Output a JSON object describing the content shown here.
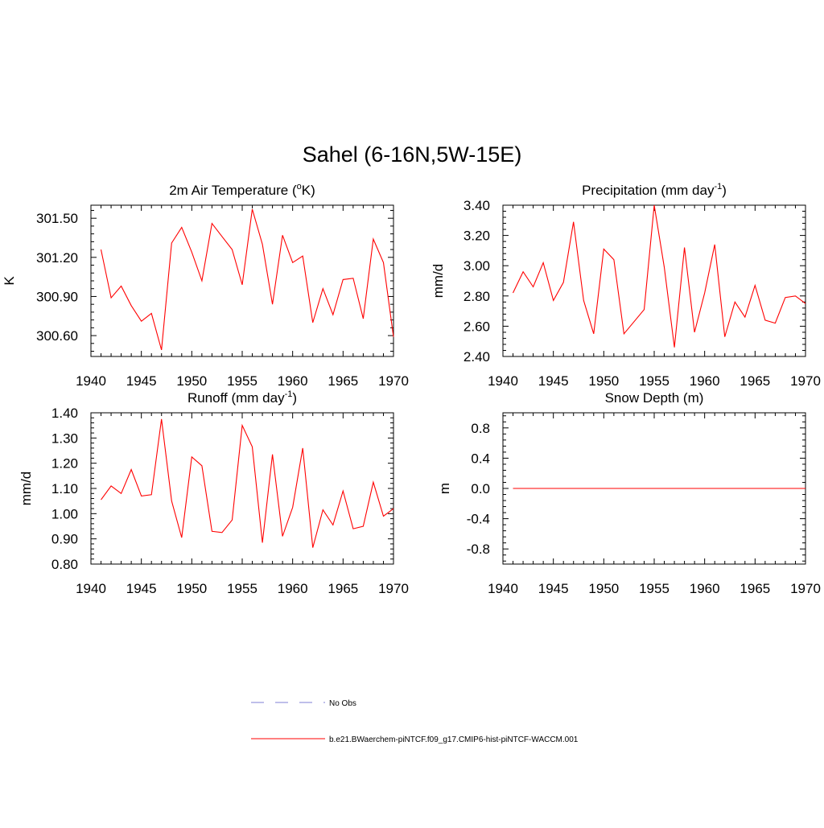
{
  "title": "Sahel (6-16N,5W-15E)",
  "colors": {
    "model": "#ff0000",
    "obs": "#9999dd",
    "axis": "#000000"
  },
  "legend": {
    "obs_label": "No Obs",
    "model_label": "b.e21.BWaerchem-piNTCF.f09_g17.CMIP6-hist-piNTCF-WACCM.001"
  },
  "chart_data": [
    {
      "type": "line",
      "title_main": "2m Air Temperature (",
      "title_sup_pre": "o",
      "title_rest": "K)",
      "title_sup": "",
      "title_tail": "",
      "ylabel": "K",
      "xlim": [
        1940,
        1970
      ],
      "ylim": [
        300.44,
        301.6
      ],
      "xticks": [
        1940,
        1945,
        1950,
        1955,
        1960,
        1965,
        1970
      ],
      "xtick_labels": [
        "1940",
        "1945",
        "1950",
        "1955",
        "1960",
        "1965",
        "1970"
      ],
      "yticks": [
        300.6,
        300.9,
        301.2,
        301.5
      ],
      "ytick_labels": [
        "300.60",
        "300.90",
        "301.20",
        "301.50"
      ],
      "x": [
        1941,
        1942,
        1943,
        1944,
        1945,
        1946,
        1947,
        1948,
        1949,
        1950,
        1951,
        1952,
        1953,
        1954,
        1955,
        1956,
        1957,
        1958,
        1959,
        1960,
        1961,
        1962,
        1963,
        1964,
        1965,
        1966,
        1967,
        1968,
        1969,
        1970
      ],
      "series": [
        {
          "values": [
            301.26,
            300.89,
            300.98,
            300.83,
            300.71,
            300.77,
            300.49,
            301.31,
            301.43,
            301.24,
            301.02,
            301.46,
            301.36,
            301.26,
            300.99,
            301.57,
            301.3,
            300.84,
            301.37,
            301.16,
            301.21,
            300.7,
            300.96,
            300.76,
            301.03,
            301.04,
            300.73,
            301.34,
            301.16,
            300.59
          ]
        }
      ]
    },
    {
      "type": "line",
      "title_main": "Precipitation (mm day",
      "title_sup_pre": "",
      "title_rest": "",
      "title_sup": "-1",
      "title_tail": ")",
      "ylabel": "mm/d",
      "xlim": [
        1940,
        1970
      ],
      "ylim": [
        2.4,
        3.4
      ],
      "xticks": [
        1940,
        1945,
        1950,
        1955,
        1960,
        1965,
        1970
      ],
      "xtick_labels": [
        "1940",
        "1945",
        "1950",
        "1955",
        "1960",
        "1965",
        "1970"
      ],
      "yticks": [
        2.4,
        2.6,
        2.8,
        3.0,
        3.2,
        3.4
      ],
      "ytick_labels": [
        "2.40",
        "2.60",
        "2.80",
        "3.00",
        "3.20",
        "3.40"
      ],
      "x": [
        1941,
        1942,
        1943,
        1944,
        1945,
        1946,
        1947,
        1948,
        1949,
        1950,
        1951,
        1952,
        1953,
        1954,
        1955,
        1956,
        1957,
        1958,
        1959,
        1960,
        1961,
        1962,
        1963,
        1964,
        1965,
        1966,
        1967,
        1968,
        1969,
        1970
      ],
      "series": [
        {
          "values": [
            2.82,
            2.96,
            2.86,
            3.02,
            2.77,
            2.89,
            3.29,
            2.77,
            2.55,
            3.11,
            3.04,
            2.55,
            2.63,
            2.71,
            3.4,
            2.99,
            2.46,
            3.12,
            2.56,
            2.82,
            3.14,
            2.53,
            2.76,
            2.66,
            2.87,
            2.64,
            2.62,
            2.79,
            2.8,
            2.75
          ]
        }
      ]
    },
    {
      "type": "line",
      "title_main": "Runoff (mm day",
      "title_sup_pre": "",
      "title_rest": "",
      "title_sup": "-1",
      "title_tail": ")",
      "ylabel": "mm/d",
      "xlim": [
        1940,
        1970
      ],
      "ylim": [
        0.8,
        1.4
      ],
      "xticks": [
        1940,
        1945,
        1950,
        1955,
        1960,
        1965,
        1970
      ],
      "xtick_labels": [
        "1940",
        "1945",
        "1950",
        "1955",
        "1960",
        "1965",
        "1970"
      ],
      "yticks": [
        0.8,
        0.9,
        1.0,
        1.1,
        1.2,
        1.3,
        1.4
      ],
      "ytick_labels": [
        "0.80",
        "0.90",
        "1.00",
        "1.10",
        "1.20",
        "1.30",
        "1.40"
      ],
      "x": [
        1941,
        1942,
        1943,
        1944,
        1945,
        1946,
        1947,
        1948,
        1949,
        1950,
        1951,
        1952,
        1953,
        1954,
        1955,
        1956,
        1957,
        1958,
        1959,
        1960,
        1961,
        1962,
        1963,
        1964,
        1965,
        1966,
        1967,
        1968,
        1969,
        1970
      ],
      "series": [
        {
          "values": [
            1.055,
            1.11,
            1.08,
            1.175,
            1.07,
            1.075,
            1.375,
            1.05,
            0.905,
            1.225,
            1.19,
            0.93,
            0.925,
            0.975,
            1.35,
            1.265,
            0.885,
            1.235,
            0.91,
            1.025,
            1.26,
            0.865,
            1.015,
            0.955,
            1.09,
            0.94,
            0.95,
            1.125,
            0.99,
            1.02
          ]
        }
      ]
    },
    {
      "type": "line",
      "title_main": "Snow Depth (m)",
      "title_sup_pre": "",
      "title_rest": "",
      "title_sup": "",
      "title_tail": "",
      "ylabel": "m",
      "xlim": [
        1940,
        1970
      ],
      "ylim": [
        -1.0,
        1.0
      ],
      "xticks": [
        1940,
        1945,
        1950,
        1955,
        1960,
        1965,
        1970
      ],
      "xtick_labels": [
        "1940",
        "1945",
        "1950",
        "1955",
        "1960",
        "1965",
        "1970"
      ],
      "yticks": [
        -0.8,
        -0.4,
        0.0,
        0.4,
        0.8
      ],
      "ytick_labels": [
        "-0.8",
        "-0.4",
        "0.0",
        "0.4",
        "0.8"
      ],
      "x": [
        1941,
        1942,
        1943,
        1944,
        1945,
        1946,
        1947,
        1948,
        1949,
        1950,
        1951,
        1952,
        1953,
        1954,
        1955,
        1956,
        1957,
        1958,
        1959,
        1960,
        1961,
        1962,
        1963,
        1964,
        1965,
        1966,
        1967,
        1968,
        1969,
        1970
      ],
      "series": [
        {
          "values": [
            0,
            0,
            0,
            0,
            0,
            0,
            0,
            0,
            0,
            0,
            0,
            0,
            0,
            0,
            0,
            0,
            0,
            0,
            0,
            0,
            0,
            0,
            0,
            0,
            0,
            0,
            0,
            0,
            0,
            0
          ]
        }
      ]
    }
  ]
}
